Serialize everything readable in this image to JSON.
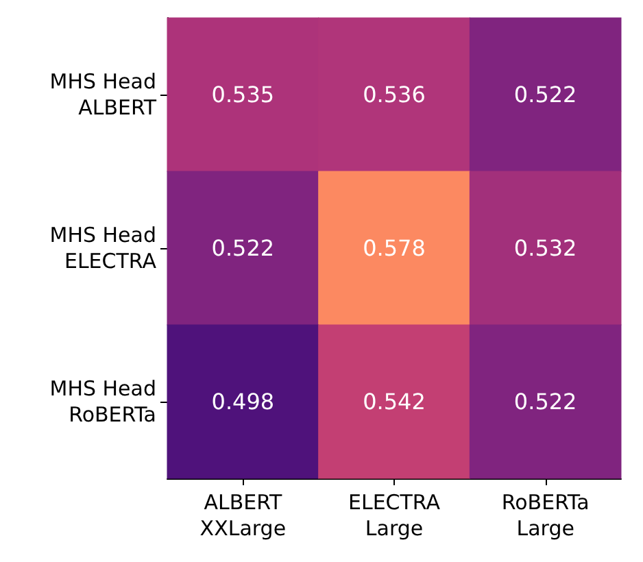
{
  "chart_data": {
    "type": "heatmap",
    "categories": [
      "ALBERT\nXXLarge",
      "ELECTRA\nLarge",
      "RoBERTa\nLarge"
    ],
    "y_categories": [
      "MHS Head\nALBERT",
      "MHS Head\nELECTRA",
      "MHS Head\nRoBERTa"
    ],
    "cells": [
      [
        0.535,
        0.536,
        0.522
      ],
      [
        0.522,
        0.578,
        0.532
      ],
      [
        0.498,
        0.542,
        0.522
      ]
    ],
    "data_labels": true
  }
}
